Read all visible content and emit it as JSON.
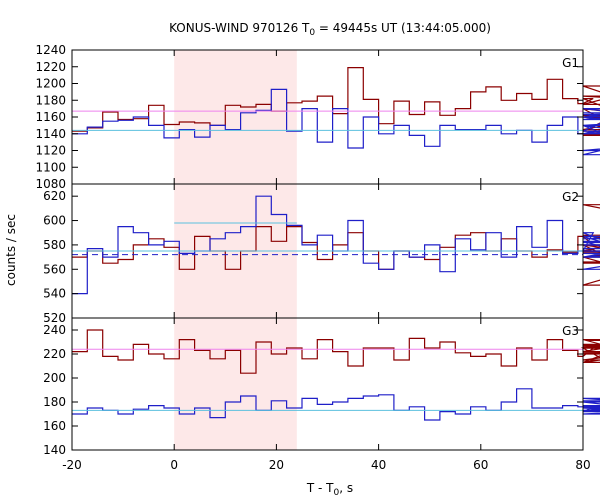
{
  "chart_data": {
    "type": "line",
    "title": "KONUS-WIND 970126 T",
    "title_sub": "0",
    "title_rest": " = 49445s UT (13:44:05.000)",
    "xlabel": "T - T",
    "xlabel_sub": "0",
    "xlabel_rest": ", s",
    "ylabel": "counts / sec",
    "xlim": [
      -20,
      80
    ],
    "xticks": [
      "-20",
      "0",
      "20",
      "40",
      "60",
      "80"
    ],
    "highlight_interval": [
      0,
      24
    ],
    "colors": {
      "dark_red": "#8b0000",
      "blue": "#1f1fc8",
      "pink": "#ee82ee",
      "cyan": "#5bc0de",
      "highlight": "#fde8e8"
    },
    "panels": [
      {
        "label": "G1",
        "ylim": [
          1080,
          1240
        ],
        "yticks": [
          "1080",
          "1100",
          "1120",
          "1140",
          "1160",
          "1180",
          "1200",
          "1220",
          "1240"
        ],
        "bin_width": 3,
        "x_start": -20,
        "series": [
          {
            "color": "dark_red",
            "values": [
              1143,
              1147,
              1166,
              1157,
              1158,
              1174,
              1151,
              1154,
              1153,
              1150,
              1174,
              1172,
              1175,
              1167,
              1177,
              1179,
              1185,
              1164,
              1219,
              1181,
              1152,
              1179,
              1163,
              1178,
              1162,
              1170,
              1190,
              1196,
              1180,
              1188,
              1181,
              1205,
              1182,
              1176,
              1182,
              1170,
              1143,
              1175,
              1197,
              1162,
              1138,
              1160,
              1140,
              1138,
              1145,
              1185,
              1170,
              1140,
              1160,
              1160
            ]
          },
          {
            "color": "blue",
            "values": [
              1140,
              1148,
              1155,
              1156,
              1160,
              1150,
              1135,
              1145,
              1136,
              1150,
              1145,
              1165,
              1168,
              1193,
              1143,
              1170,
              1130,
              1170,
              1123,
              1160,
              1140,
              1150,
              1138,
              1125,
              1150,
              1145,
              1145,
              1150,
              1140,
              1144,
              1130,
              1150,
              1160,
              1140,
              1143,
              1157,
              1160,
              1150,
              1115,
              1140,
              1163,
              1150,
              1160,
              1170,
              1150,
              1120,
              1140,
              1157,
              1165,
              1160
            ]
          },
          {
            "color": "pink",
            "level": 1167
          },
          {
            "color": "cyan",
            "level": 1144
          }
        ]
      },
      {
        "label": "G2",
        "ylim": [
          520,
          630
        ],
        "yticks": [
          "520",
          "540",
          "560",
          "580",
          "600",
          "620"
        ],
        "bin_width": 3,
        "x_start": -20,
        "series": [
          {
            "color": "dark_red",
            "values": [
              570,
              575,
              565,
              568,
              580,
              585,
              578,
              560,
              587,
              575,
              560,
              575,
              595,
              583,
              595,
              582,
              568,
              580,
              590,
              575,
              560,
              575,
              570,
              568,
              578,
              588,
              590,
              575,
              585,
              575,
              570,
              576,
              574,
              587,
              580,
              570,
              574,
              588,
              580,
              570,
              547,
              575,
              566,
              565,
              575,
              575,
              613,
              580,
              575,
              570
            ]
          },
          {
            "color": "blue",
            "values": [
              540,
              577,
              570,
              595,
              590,
              580,
              583,
              573,
              575,
              585,
              590,
              595,
              620,
              605,
              596,
              580,
              588,
              575,
              600,
              565,
              560,
              575,
              570,
              580,
              558,
              585,
              576,
              590,
              570,
              595,
              578,
              600,
              573,
              575,
              590,
              582,
              585,
              587,
              570,
              583,
              560,
              575,
              575,
              575,
              573,
              570,
              580,
              577,
              580,
              575
            ]
          },
          {
            "color": "blue",
            "level": 572,
            "dashed": true
          },
          {
            "color": "cyan",
            "level": 575
          },
          {
            "color": "cyan",
            "segment": [
              0,
              24
            ],
            "level": 598
          }
        ]
      },
      {
        "label": "G3",
        "ylim": [
          140,
          250
        ],
        "yticks": [
          "140",
          "160",
          "180",
          "200",
          "220",
          "240"
        ],
        "bin_width": 3,
        "x_start": -20,
        "series": [
          {
            "color": "dark_red",
            "values": [
              222,
              240,
              218,
              215,
              228,
              220,
              216,
              232,
              223,
              216,
              223,
              204,
              230,
              220,
              225,
              216,
              232,
              222,
              210,
              225,
              225,
              215,
              233,
              225,
              230,
              221,
              218,
              220,
              210,
              225,
              215,
              232,
              223,
              218,
              225,
              213,
              226,
              222,
              232,
              213,
              225,
              228,
              221,
              215,
              232,
              225,
              222,
              220,
              227,
              220
            ]
          },
          {
            "color": "blue",
            "values": [
              170,
              175,
              173,
              170,
              174,
              177,
              175,
              170,
              175,
              167,
              180,
              185,
              173,
              181,
              175,
              183,
              178,
              180,
              183,
              185,
              186,
              173,
              176,
              165,
              172,
              170,
              176,
              173,
              180,
              191,
              175,
              175,
              177,
              176,
              172,
              177,
              175,
              181,
              180,
              172,
              175,
              170,
              175,
              176,
              183,
              173,
              175,
              173,
              180,
              180
            ]
          },
          {
            "color": "pink",
            "level": 224
          },
          {
            "color": "cyan",
            "level": 173
          }
        ]
      }
    ]
  }
}
